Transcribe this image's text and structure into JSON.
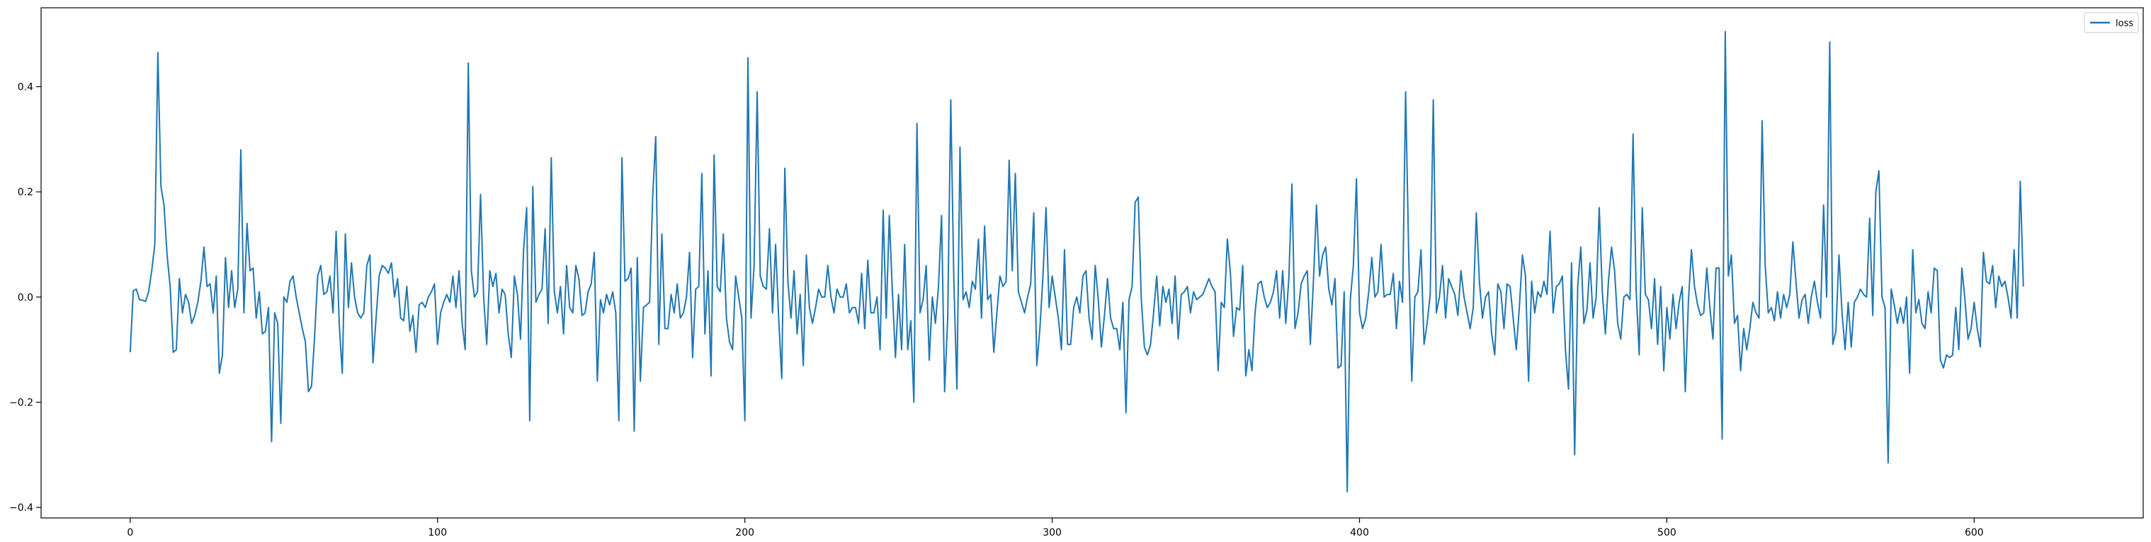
{
  "chart_data": {
    "type": "line",
    "title": "",
    "xlabel": "",
    "ylabel": "",
    "xlim": [
      -29,
      655
    ],
    "ylim": [
      -0.42,
      0.55
    ],
    "x_ticks": [
      0,
      100,
      200,
      300,
      400,
      500,
      600
    ],
    "x_tick_labels": [
      "0",
      "100",
      "200",
      "300",
      "400",
      "500",
      "600"
    ],
    "y_ticks": [
      -0.4,
      -0.2,
      0.0,
      0.2,
      0.4
    ],
    "y_tick_labels": [
      "−0.4",
      "−0.2",
      "0.0",
      "0.2",
      "0.4"
    ],
    "grid": false,
    "legend_position": "top-right",
    "series": [
      {
        "name": "loss",
        "color": "#1f77b4",
        "x_start": 0,
        "x_step": 1,
        "values": [
          -0.105,
          0.012,
          0.015,
          -0.005,
          -0.006,
          -0.008,
          0.01,
          0.05,
          0.1,
          0.465,
          0.21,
          0.175,
          0.08,
          0.02,
          -0.105,
          -0.1,
          0.035,
          -0.03,
          0.005,
          -0.01,
          -0.05,
          -0.035,
          -0.01,
          0.03,
          0.095,
          0.02,
          0.025,
          -0.03,
          0.04,
          -0.145,
          -0.11,
          0.075,
          -0.02,
          0.05,
          -0.02,
          0.015,
          0.28,
          -0.03,
          0.14,
          0.05,
          0.055,
          -0.04,
          0.01,
          -0.07,
          -0.065,
          -0.02,
          -0.275,
          -0.03,
          -0.05,
          -0.24,
          0.0,
          -0.01,
          0.03,
          0.04,
          0.0,
          -0.03,
          -0.06,
          -0.085,
          -0.18,
          -0.17,
          -0.075,
          0.04,
          0.06,
          0.005,
          0.01,
          0.04,
          -0.03,
          0.125,
          -0.05,
          -0.145,
          0.12,
          -0.02,
          0.065,
          0.0,
          -0.03,
          -0.04,
          -0.03,
          0.06,
          0.08,
          -0.125,
          -0.04,
          0.04,
          0.06,
          0.055,
          0.045,
          0.065,
          0.0,
          0.035,
          -0.04,
          -0.045,
          0.02,
          -0.065,
          -0.035,
          -0.105,
          -0.015,
          -0.01,
          -0.02,
          0.0,
          0.01,
          0.025,
          -0.09,
          -0.03,
          -0.01,
          0.005,
          -0.01,
          0.04,
          -0.02,
          0.05,
          -0.05,
          -0.1,
          0.445,
          0.05,
          0.0,
          0.01,
          0.195,
          0.0,
          -0.09,
          0.05,
          0.02,
          0.045,
          -0.03,
          0.015,
          0.005,
          -0.07,
          -0.115,
          0.04,
          0.005,
          -0.08,
          0.09,
          0.17,
          -0.235,
          0.21,
          -0.01,
          0.005,
          0.015,
          0.13,
          -0.05,
          0.265,
          0.01,
          -0.03,
          0.02,
          -0.07,
          0.06,
          -0.02,
          -0.03,
          0.06,
          0.035,
          -0.035,
          -0.03,
          0.01,
          0.025,
          0.085,
          -0.16,
          -0.005,
          -0.03,
          0.005,
          -0.015,
          0.01,
          -0.03,
          -0.235,
          0.265,
          0.03,
          0.035,
          0.055,
          -0.255,
          0.075,
          -0.16,
          -0.02,
          -0.015,
          -0.01,
          0.19,
          0.305,
          -0.09,
          0.12,
          -0.06,
          -0.06,
          0.005,
          -0.03,
          0.025,
          -0.04,
          -0.03,
          0.0,
          0.085,
          -0.115,
          0.015,
          0.02,
          0.235,
          -0.07,
          0.05,
          -0.15,
          0.27,
          0.02,
          0.01,
          0.12,
          -0.04,
          -0.085,
          -0.1,
          0.04,
          0.0,
          -0.04,
          -0.235,
          0.455,
          -0.04,
          0.06,
          0.39,
          0.04,
          0.02,
          0.015,
          0.13,
          -0.03,
          0.1,
          -0.04,
          -0.155,
          0.245,
          0.03,
          -0.04,
          0.05,
          -0.07,
          0.005,
          -0.13,
          0.08,
          -0.02,
          -0.05,
          -0.02,
          0.015,
          0.0,
          0.0,
          0.06,
          0.0,
          -0.03,
          0.015,
          0.0,
          0.0,
          0.025,
          -0.03,
          -0.02,
          -0.02,
          -0.05,
          0.045,
          -0.06,
          0.07,
          -0.03,
          -0.03,
          0.0,
          -0.1,
          0.165,
          -0.04,
          0.155,
          0.01,
          -0.115,
          0.005,
          -0.1,
          0.1,
          -0.1,
          -0.045,
          -0.2,
          0.33,
          -0.03,
          -0.005,
          0.06,
          -0.12,
          0.0,
          -0.05,
          0.02,
          0.155,
          -0.18,
          -0.04,
          0.375,
          0.03,
          -0.175,
          0.285,
          -0.005,
          0.01,
          -0.02,
          0.03,
          0.015,
          0.11,
          -0.04,
          0.135,
          -0.005,
          0.005,
          -0.105,
          -0.03,
          0.04,
          0.02,
          0.03,
          0.26,
          0.05,
          0.235,
          0.01,
          -0.01,
          -0.03,
          0.0,
          0.025,
          0.16,
          -0.13,
          -0.06,
          0.04,
          0.17,
          -0.02,
          0.04,
          0.0,
          -0.04,
          -0.1,
          0.09,
          -0.09,
          -0.09,
          -0.02,
          0.0,
          -0.03,
          0.04,
          0.05,
          -0.04,
          -0.08,
          0.06,
          -0.005,
          -0.095,
          -0.035,
          0.035,
          -0.04,
          -0.06,
          -0.06,
          -0.1,
          -0.01,
          -0.22,
          -0.005,
          0.02,
          0.18,
          0.19,
          -0.005,
          -0.095,
          -0.11,
          -0.09,
          -0.03,
          0.04,
          -0.055,
          0.02,
          -0.01,
          0.015,
          -0.05,
          0.04,
          -0.08,
          0.005,
          0.01,
          0.02,
          -0.03,
          0.01,
          -0.005,
          0.0,
          0.005,
          0.02,
          0.035,
          0.02,
          0.01,
          -0.14,
          -0.01,
          -0.02,
          0.11,
          0.045,
          -0.075,
          -0.02,
          -0.025,
          0.06,
          -0.15,
          -0.1,
          -0.14,
          -0.03,
          0.025,
          0.03,
          0.0,
          -0.02,
          -0.01,
          0.01,
          0.05,
          -0.04,
          0.05,
          -0.05,
          0.035,
          0.215,
          -0.06,
          -0.03,
          0.025,
          0.04,
          0.05,
          -0.09,
          0.03,
          0.175,
          0.04,
          0.08,
          0.095,
          0.015,
          -0.015,
          0.035,
          -0.135,
          -0.13,
          0.01,
          -0.37,
          -0.005,
          0.06,
          0.225,
          -0.03,
          -0.06,
          -0.04,
          0.01,
          0.075,
          0.0,
          0.01,
          0.1,
          0.0,
          0.005,
          0.005,
          0.045,
          -0.06,
          0.03,
          -0.01,
          0.39,
          0.08,
          -0.16,
          0.0,
          0.01,
          0.09,
          -0.09,
          -0.05,
          0.005,
          0.375,
          -0.03,
          0.0,
          0.06,
          -0.04,
          0.035,
          0.02,
          0.005,
          -0.035,
          0.05,
          0.0,
          -0.03,
          -0.06,
          -0.02,
          0.16,
          0.03,
          -0.04,
          0.0,
          0.01,
          -0.07,
          -0.11,
          0.025,
          0.01,
          -0.06,
          0.025,
          0.02,
          -0.04,
          -0.1,
          -0.02,
          0.08,
          0.04,
          -0.16,
          0.03,
          -0.03,
          0.01,
          0.0,
          0.03,
          0.005,
          0.125,
          -0.03,
          0.02,
          0.025,
          0.04,
          -0.1,
          -0.175,
          0.065,
          -0.3,
          0.02,
          0.095,
          -0.05,
          -0.025,
          0.065,
          -0.04,
          0.0,
          0.17,
          0.01,
          -0.07,
          0.03,
          0.095,
          0.05,
          -0.05,
          -0.08,
          0.0,
          0.005,
          -0.005,
          0.31,
          0.015,
          -0.11,
          0.17,
          0.005,
          -0.005,
          -0.06,
          0.035,
          -0.09,
          0.02,
          -0.14,
          -0.02,
          -0.08,
          0.005,
          -0.06,
          -0.01,
          0.02,
          -0.18,
          -0.01,
          0.09,
          0.02,
          -0.015,
          -0.035,
          -0.03,
          0.055,
          -0.02,
          -0.08,
          0.055,
          0.055,
          -0.27,
          0.505,
          0.04,
          0.08,
          -0.05,
          -0.035,
          -0.14,
          -0.06,
          -0.1,
          -0.06,
          -0.01,
          -0.03,
          -0.04,
          0.335,
          0.06,
          -0.03,
          -0.02,
          -0.045,
          0.01,
          -0.04,
          0.005,
          -0.02,
          0.005,
          0.105,
          0.03,
          -0.04,
          -0.005,
          0.005,
          -0.05,
          0.0,
          0.03,
          -0.01,
          -0.04,
          0.175,
          0.0,
          0.485,
          -0.09,
          -0.065,
          0.08,
          -0.03,
          -0.1,
          -0.01,
          -0.095,
          -0.01,
          0.0,
          0.015,
          0.005,
          0.0,
          0.15,
          -0.035,
          0.2,
          0.24,
          0.0,
          -0.02,
          -0.315,
          0.015,
          -0.015,
          -0.05,
          -0.02,
          -0.05,
          0.0,
          -0.145,
          0.09,
          -0.03,
          -0.005,
          -0.05,
          -0.06,
          0.01,
          -0.03,
          0.055,
          0.05,
          -0.12,
          -0.135,
          -0.11,
          -0.115,
          -0.11,
          -0.02,
          -0.1,
          0.055,
          -0.005,
          -0.08,
          -0.06,
          -0.01,
          -0.06,
          -0.095,
          0.085,
          0.03,
          0.025,
          0.06,
          -0.02,
          0.04,
          0.02,
          0.03,
          0.0,
          -0.04,
          0.09,
          -0.04,
          0.22,
          0.02
        ]
      }
    ]
  }
}
